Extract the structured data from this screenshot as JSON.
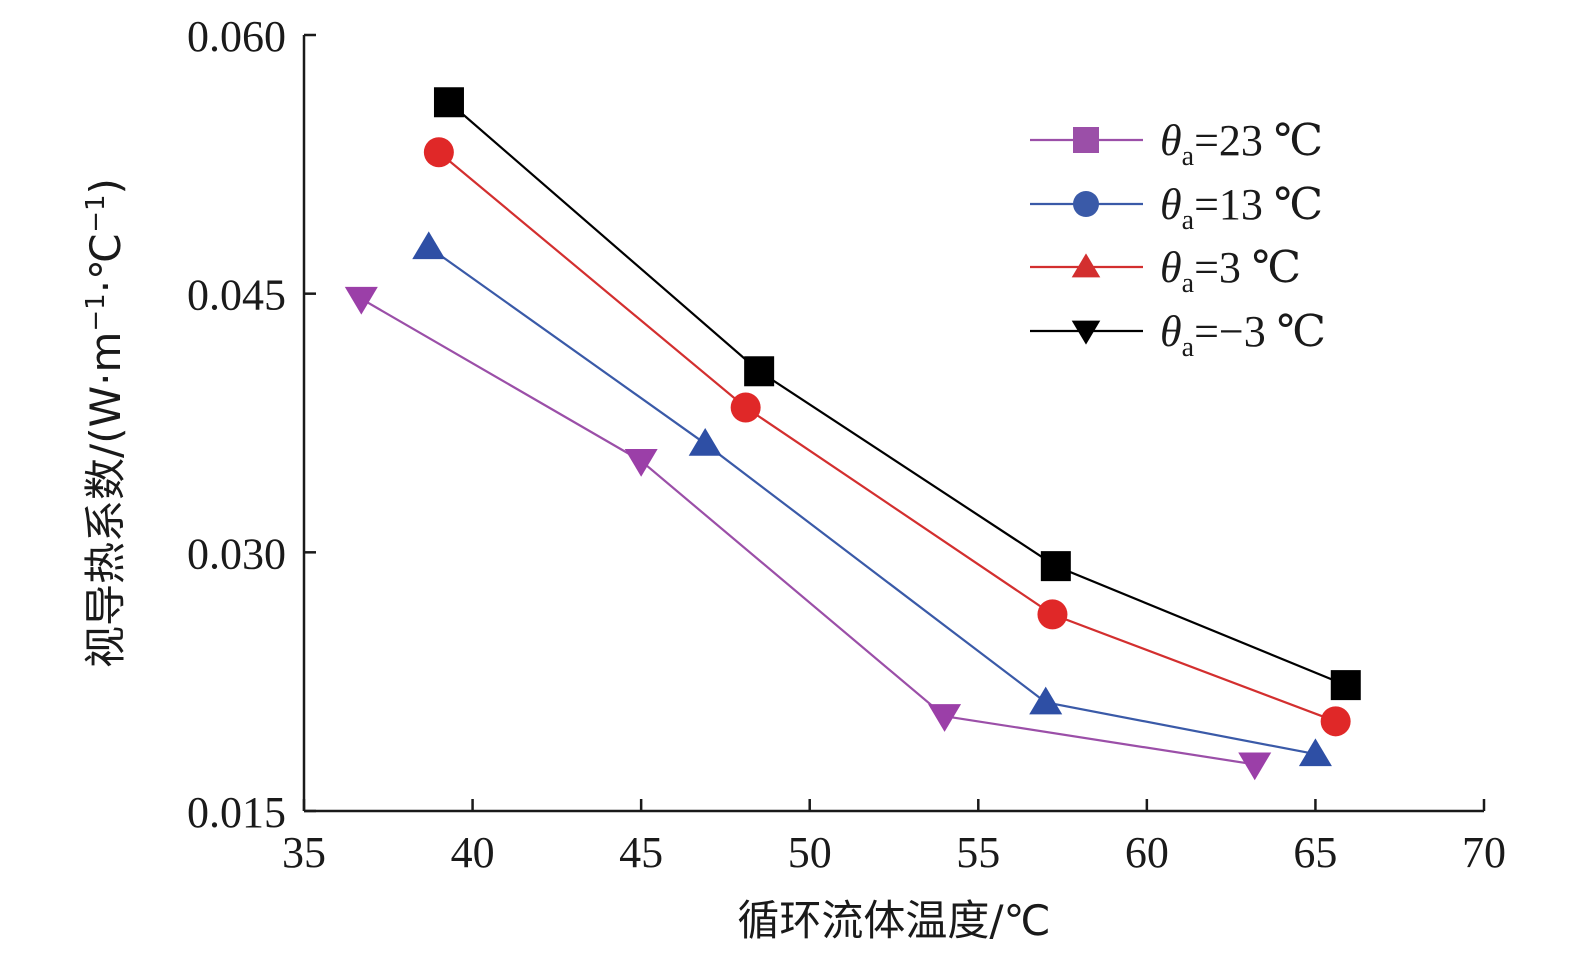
{
  "chart_data": {
    "type": "line",
    "title": "",
    "xlabel": "循环流体温度/℃",
    "ylabel": "视导热系数/(W·m⁻¹·℃⁻¹)",
    "ylabel_parts": {
      "main": "视导热系数/(W·m",
      "exp1": "−1",
      "mid": "·℃",
      "exp2": "−1",
      "end": ")"
    },
    "xlim": [
      35,
      70
    ],
    "ylim": [
      0.015,
      0.06
    ],
    "xticks": [
      35,
      40,
      45,
      50,
      55,
      60,
      65,
      70
    ],
    "xtick_labels": [
      "35",
      "40",
      "45",
      "50",
      "55",
      "60",
      "65",
      "70"
    ],
    "yticks": [
      0.015,
      0.03,
      0.045,
      0.06
    ],
    "ytick_labels": [
      "0.015",
      "0.030",
      "0.045",
      "0.060"
    ],
    "legend_position": "top-right",
    "series": [
      {
        "name": "θa=23 ℃",
        "symbol": "θ",
        "subscript": "a",
        "suffix": "=23 ℃",
        "line_color": "#9b4fa8",
        "marker_legend": "square",
        "marker_plot": "triangle-down",
        "marker_color": "#9b3fa8",
        "x": [
          36.7,
          45.0,
          54.0,
          63.2
        ],
        "y": [
          0.0447,
          0.0353,
          0.0205,
          0.0177
        ]
      },
      {
        "name": "θa=13 ℃",
        "symbol": "θ",
        "subscript": "a",
        "suffix": "=13 ℃",
        "line_color": "#3a5aa8",
        "marker_legend": "circle",
        "marker_plot": "triangle-up",
        "marker_color": "#2e4fa5",
        "x": [
          38.7,
          46.9,
          57.0,
          65.0
        ],
        "y": [
          0.0477,
          0.0363,
          0.0213,
          0.0183
        ]
      },
      {
        "name": "θa=3 ℃",
        "symbol": "θ",
        "subscript": "a",
        "suffix": "=3 ℃",
        "line_color": "#d32f2f",
        "marker_legend": "triangle-up",
        "marker_plot": "circle",
        "marker_color": "#e02828",
        "x": [
          39.0,
          48.1,
          57.2,
          65.6
        ],
        "y": [
          0.0532,
          0.0384,
          0.0264,
          0.0202
        ]
      },
      {
        "name": "θa=−3 ℃",
        "symbol": "θ",
        "subscript": "a",
        "suffix": "=−3 ℃",
        "line_color": "#000000",
        "marker_legend": "triangle-down",
        "marker_plot": "square",
        "marker_color": "#000000",
        "x": [
          39.3,
          48.5,
          57.3,
          65.9
        ],
        "y": [
          0.0561,
          0.0405,
          0.0292,
          0.0223
        ]
      }
    ]
  }
}
